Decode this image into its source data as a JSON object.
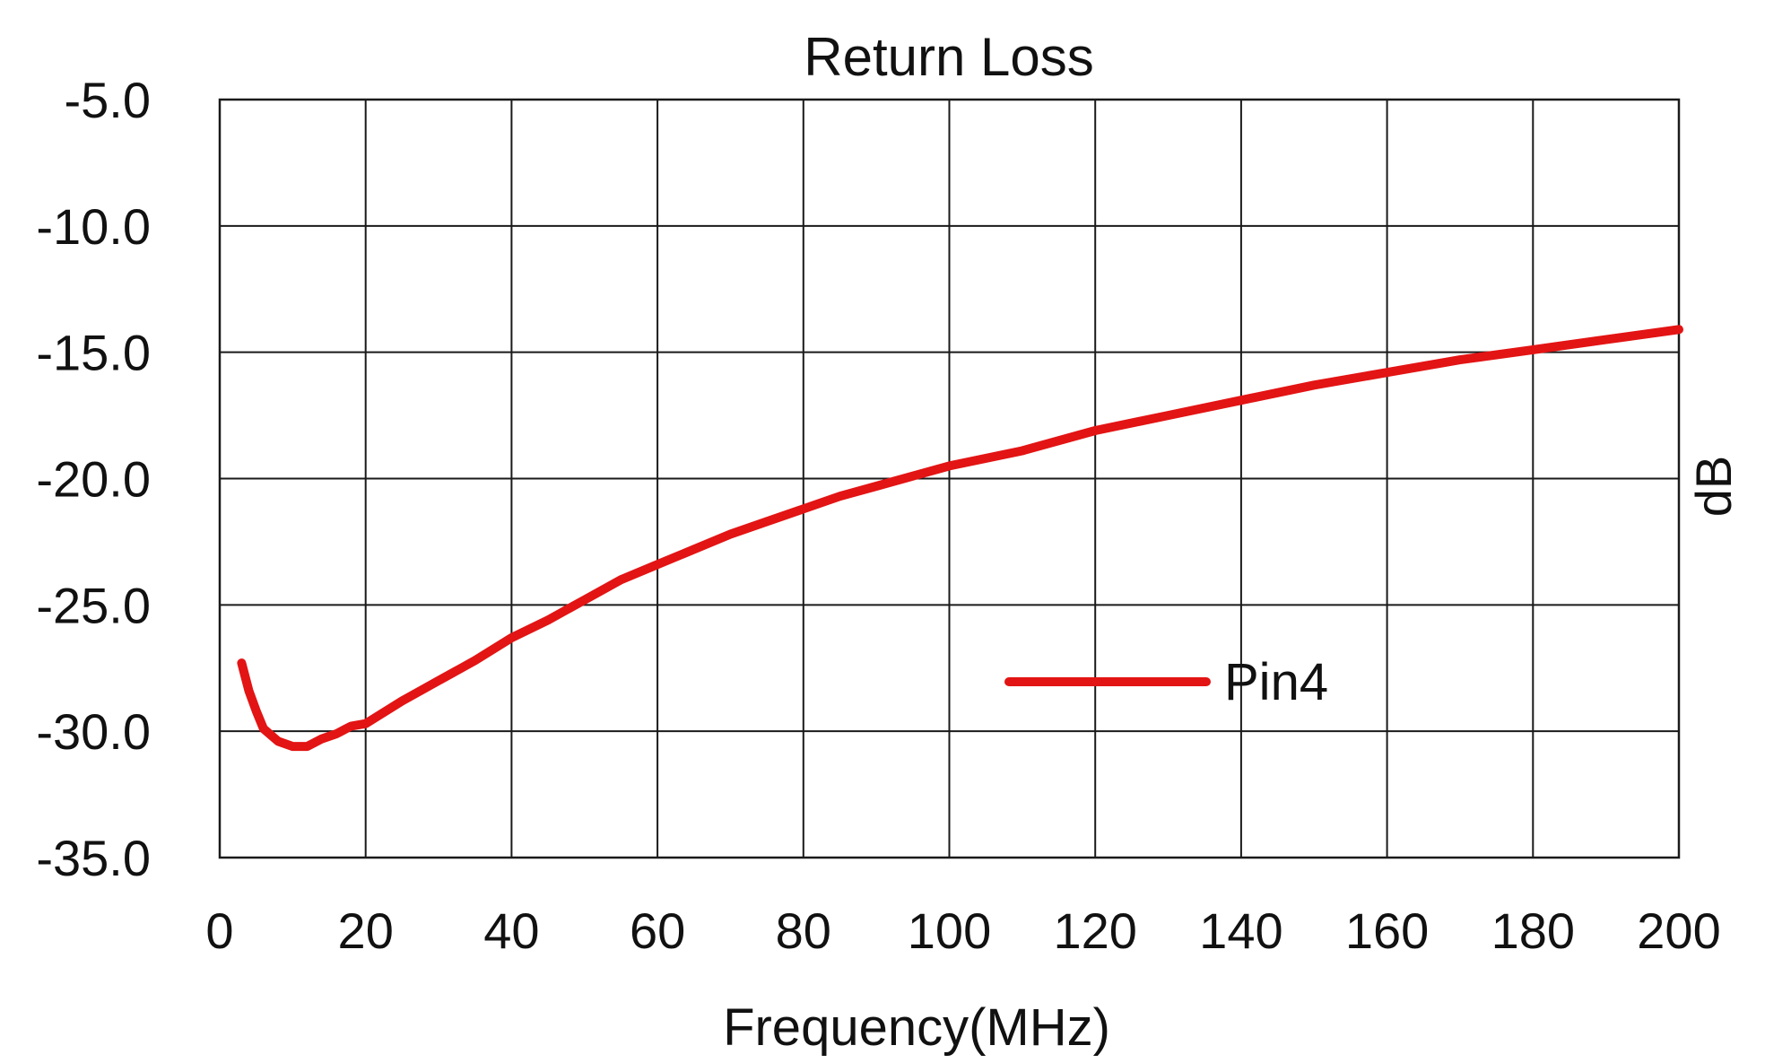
{
  "chart_data": {
    "type": "line",
    "title": "Return Loss",
    "xlabel": "Frequency(MHz)",
    "ylabel": "dB",
    "xlim": [
      0,
      200
    ],
    "ylim": [
      -35,
      -5
    ],
    "x_ticks": [
      0,
      20,
      40,
      60,
      80,
      100,
      120,
      140,
      160,
      180,
      200
    ],
    "y_ticks": [
      -5,
      -10,
      -15,
      -20,
      -25,
      -30,
      -35
    ],
    "x_tick_labels": [
      "0",
      "20",
      "40",
      "60",
      "80",
      "100",
      "120",
      "140",
      "160",
      "180",
      "200"
    ],
    "y_tick_labels": [
      "-5.0",
      "-10.0",
      "-15.0",
      "-20.0",
      "-25.0",
      "-30.0",
      "-35.0"
    ],
    "grid": true,
    "legend": "center-right",
    "series": [
      {
        "name": "Pin4",
        "color": "#e31414",
        "x": [
          3,
          4,
          5,
          6,
          8,
          10,
          12,
          14,
          16,
          18,
          20,
          25,
          30,
          35,
          40,
          45,
          50,
          55,
          60,
          65,
          70,
          75,
          80,
          85,
          90,
          95,
          100,
          110,
          120,
          130,
          140,
          150,
          160,
          170,
          180,
          190,
          200
        ],
        "y": [
          -27.3,
          -28.4,
          -29.2,
          -29.9,
          -30.4,
          -30.6,
          -30.6,
          -30.3,
          -30.1,
          -29.8,
          -29.7,
          -28.8,
          -28.0,
          -27.2,
          -26.3,
          -25.6,
          -24.8,
          -24.0,
          -23.4,
          -22.8,
          -22.2,
          -21.7,
          -21.2,
          -20.7,
          -20.3,
          -19.9,
          -19.5,
          -18.9,
          -18.1,
          -17.5,
          -16.9,
          -16.3,
          -15.8,
          -15.3,
          -14.9,
          -14.5,
          -14.1
        ]
      }
    ]
  }
}
